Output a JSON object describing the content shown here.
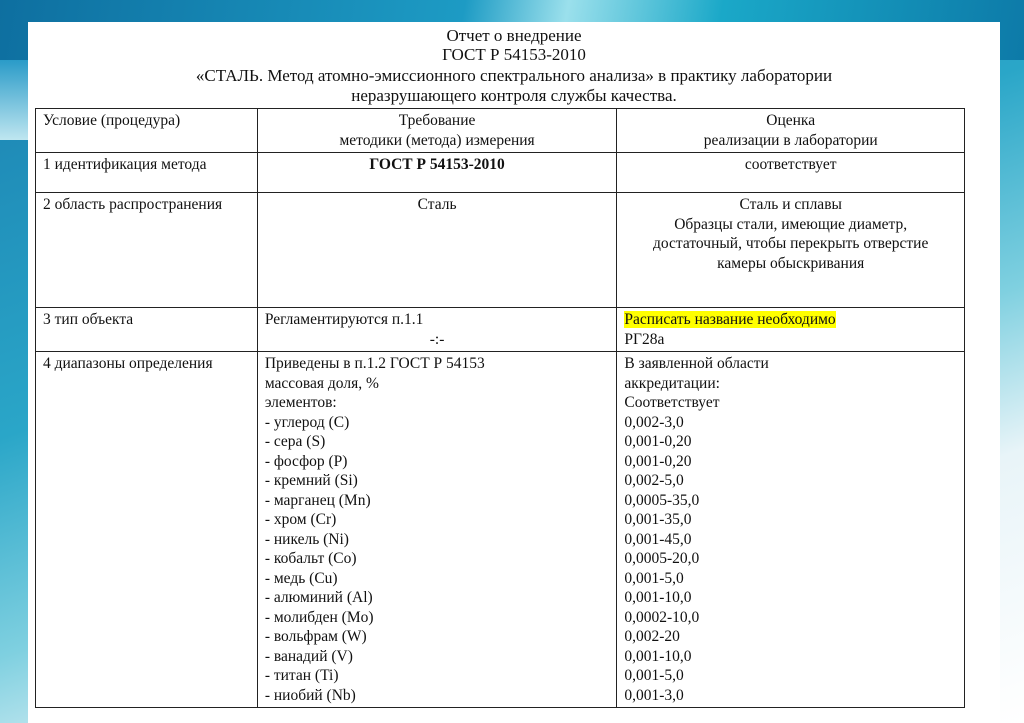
{
  "title": {
    "line1": "Отчет о внедрение",
    "line2": "ГОСТ Р 54153-2010",
    "line3": "«СТАЛЬ. Метод атомно-эмиссионного спектрального анализа» в практику лаборатории",
    "line4": "неразрушающего контроля службы качества."
  },
  "table": {
    "headers": [
      {
        "a": "Условие (процедура)"
      },
      {
        "a": "Требование",
        "b": "методики (метода) измерения"
      },
      {
        "a": "Оценка",
        "b": "реализации в лаборатории"
      }
    ],
    "row1": {
      "c1": "1 идентификация метода",
      "c2": "ГОСТ Р 54153-2010",
      "c3": "соответствует"
    },
    "row2": {
      "c1": "2 область распространения",
      "c2": "Сталь",
      "c3a": "Сталь и сплавы",
      "c3b": "Образцы стали, имеющие диаметр, достаточный, чтобы перекрыть отверстие камеры обыскривания"
    },
    "row3": {
      "c1": "3 тип объекта",
      "c2a": "Регламентируются п.1.1",
      "c2b": "-:-",
      "c3a": "Расписать название необходимо",
      "c3b": "РГ28а"
    },
    "row4": {
      "c1": "4 диапазоны определения",
      "c2a": "Приведены в п.1.2 ГОСТ Р 54153",
      "c2b": "массовая доля, %",
      "c2c": "элементов:",
      "elements": [
        "- углерод (C)",
        "- сера (S)",
        "- фосфор (P)",
        "- кремний (Si)",
        "- марганец (Mn)",
        "- хром (Cr)",
        "- никель (Ni)",
        "- кобальт (Co)",
        "- медь (Cu)",
        "- алюминий (Al)",
        "- молибден (Mo)",
        "- вольфрам (W)",
        "- ванадий (V)",
        "- титан (Ti)",
        "- ниобий (Nb)"
      ],
      "c3a": "В заявленной области",
      "c3b": "аккредитации:",
      "c3c": "Соответствует",
      "ranges": [
        "0,002-3,0",
        "0,001-0,20",
        "0,001-0,20",
        "0,002-5,0",
        "0,0005-35,0",
        "0,001-35,0",
        "0,001-45,0",
        "0,0005-20,0",
        "0,001-5,0",
        "0,001-10,0",
        "0,0002-10,0",
        "0,002-20",
        "0,001-10,0",
        "0,001-5,0",
        "0,001-3,0"
      ]
    }
  },
  "colors": {
    "highlight": "#ffff00"
  }
}
